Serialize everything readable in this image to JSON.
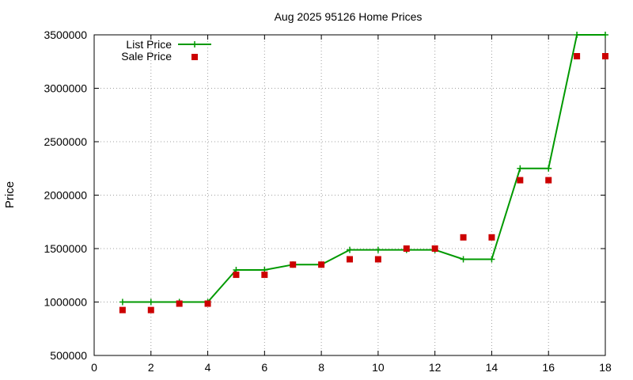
{
  "chart_data": {
    "type": "line",
    "title": "Aug 2025 95126 Home Prices",
    "xlabel": "",
    "ylabel": "Price",
    "xlim": [
      0,
      18
    ],
    "ylim": [
      500000,
      3500000
    ],
    "xticks": [
      "0",
      "2",
      "4",
      "6",
      "8",
      "10",
      "12",
      "14",
      "16",
      "18"
    ],
    "yticks": [
      "500000",
      "1000000",
      "1500000",
      "2000000",
      "2500000",
      "3000000",
      "3500000"
    ],
    "grid": true,
    "legend_position": "top-left",
    "x": [
      1,
      2,
      3,
      4,
      5,
      6,
      7,
      8,
      9,
      10,
      11,
      12,
      13,
      14,
      15,
      16,
      17,
      18
    ],
    "series": [
      {
        "name": "List Price",
        "style": "line-with-plus-markers",
        "color": "#009900",
        "values": [
          1000000,
          1000000,
          1000000,
          1000000,
          1300000,
          1300000,
          1350000,
          1350000,
          1488000,
          1488000,
          1488000,
          1488000,
          1400000,
          1400000,
          2250000,
          2250000,
          3500000,
          3500000
        ]
      },
      {
        "name": "Sale Price",
        "style": "square-markers",
        "color": "#cc0000",
        "values": [
          925000,
          925000,
          985000,
          985000,
          1255000,
          1255000,
          1350000,
          1350000,
          1400000,
          1400000,
          1500000,
          1500000,
          1605000,
          1605000,
          2140000,
          2140000,
          3300000,
          3300000
        ]
      }
    ]
  }
}
